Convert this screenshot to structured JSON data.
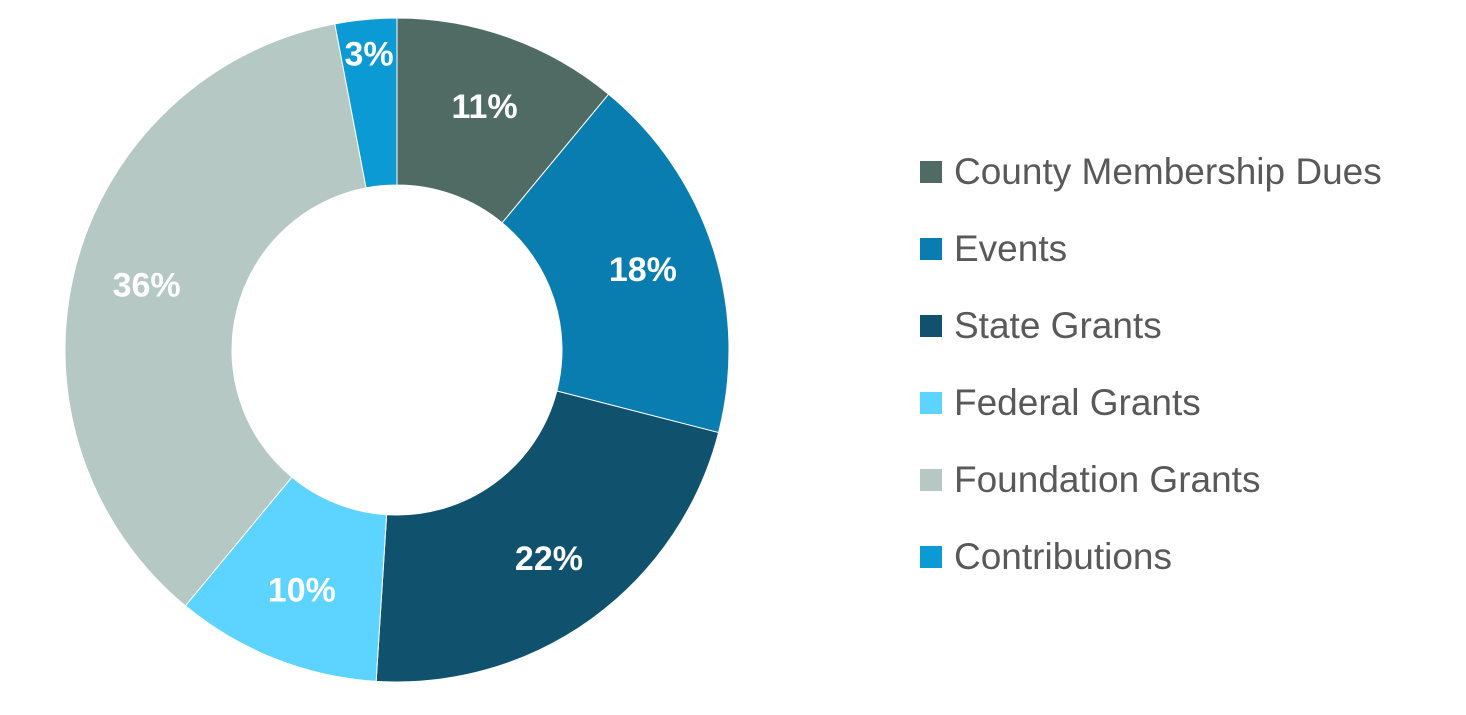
{
  "chart_data": {
    "type": "pie",
    "variant": "donut",
    "title": "",
    "categories": [
      "County Membership Dues",
      "Events",
      "State Grants",
      "Federal Grants",
      "Foundation Grants",
      "Contributions"
    ],
    "values": [
      11,
      18,
      22,
      10,
      36,
      3
    ],
    "data_labels": [
      "11%",
      "18%",
      "22%",
      "10%",
      "36%",
      "3%"
    ],
    "colors": [
      "#4F6B64",
      "#0A7DB0",
      "#10516E",
      "#5DD4FF",
      "#B5C8C3",
      "#0B9AD3"
    ],
    "legend_position": "right"
  }
}
